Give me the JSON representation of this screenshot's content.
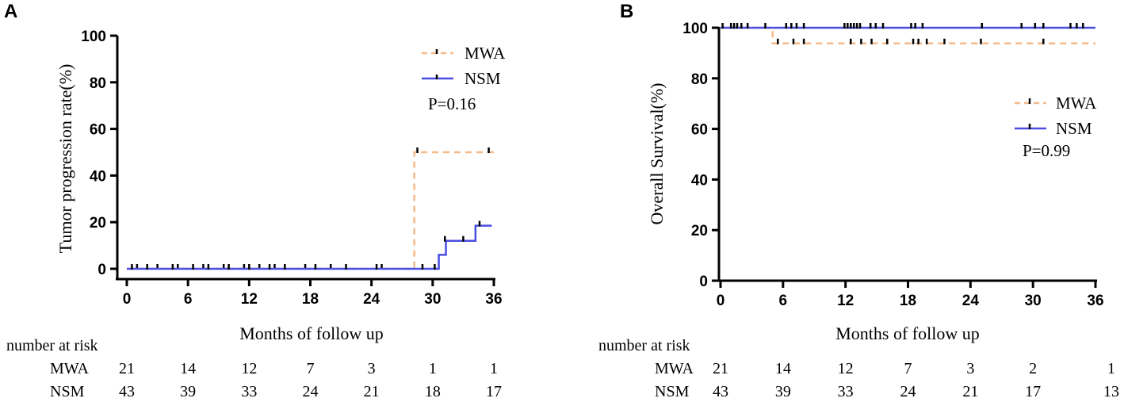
{
  "colors": {
    "mwa": "#f5b98a",
    "nsm": "#4a4ee0",
    "axis": "#000000"
  },
  "chart_data": [
    {
      "panel": "A",
      "type": "line",
      "subtype": "kaplan-meier",
      "xlabel": "Months of follow up",
      "ylabel": "Tumor progression rate(%)",
      "xlim": [
        0,
        36
      ],
      "ylim": [
        0,
        100
      ],
      "xticks": [
        0,
        6,
        12,
        18,
        24,
        30,
        36
      ],
      "yticks": [
        0,
        20,
        40,
        60,
        80,
        100
      ],
      "p_value": "P=0.16",
      "series": [
        {
          "name": "MWA",
          "style": "dashed",
          "steps": [
            [
              0,
              0
            ],
            [
              28.2,
              50
            ],
            [
              36,
              50
            ]
          ],
          "censor": [
            [
              1,
              0
            ],
            [
              3,
              0
            ],
            [
              5,
              0
            ],
            [
              7.5,
              0
            ],
            [
              9.5,
              0
            ],
            [
              11.5,
              0
            ],
            [
              13,
              0
            ],
            [
              14.5,
              0
            ],
            [
              17.5,
              0
            ],
            [
              20,
              0
            ],
            [
              25,
              0
            ],
            [
              28.5,
              50
            ],
            [
              35.5,
              50
            ]
          ]
        },
        {
          "name": "NSM",
          "style": "solid",
          "steps": [
            [
              0,
              0
            ],
            [
              30.6,
              6
            ],
            [
              31.3,
              12
            ],
            [
              34.2,
              18.5
            ],
            [
              35.8,
              18.5
            ]
          ],
          "censor": [
            [
              0.5,
              0
            ],
            [
              2,
              0
            ],
            [
              4.5,
              0
            ],
            [
              6.5,
              0
            ],
            [
              8,
              0
            ],
            [
              10,
              0
            ],
            [
              12,
              0
            ],
            [
              14,
              0
            ],
            [
              15.5,
              0
            ],
            [
              18.5,
              0
            ],
            [
              21.5,
              0
            ],
            [
              24.5,
              0
            ],
            [
              29,
              0
            ],
            [
              30.2,
              0
            ],
            [
              31.2,
              12
            ],
            [
              33,
              12
            ],
            [
              34.6,
              18.5
            ]
          ]
        }
      ],
      "risk_table": {
        "header": "number at risk",
        "times": [
          0,
          6,
          12,
          18,
          24,
          30,
          36
        ],
        "rows": [
          {
            "label": "MWA",
            "values": [
              "21",
              "14",
              "12",
              "7",
              "3",
              "1",
              "1"
            ]
          },
          {
            "label": "NSM",
            "values": [
              "43",
              "39",
              "33",
              "24",
              "21",
              "18",
              "17"
            ]
          }
        ]
      }
    },
    {
      "panel": "B",
      "type": "line",
      "subtype": "kaplan-meier",
      "xlabel": "Months of follow up",
      "ylabel": "Overall Survival(%)",
      "xlim": [
        0,
        36
      ],
      "ylim": [
        0,
        100
      ],
      "xticks": [
        0,
        6,
        12,
        18,
        24,
        30,
        36
      ],
      "yticks": [
        0,
        20,
        40,
        60,
        80,
        100
      ],
      "p_value": "P=0.99",
      "series": [
        {
          "name": "MWA",
          "style": "dashed",
          "steps": [
            [
              0,
              100
            ],
            [
              5,
              93.8
            ],
            [
              36,
              93.8
            ]
          ],
          "censor": [
            [
              5.5,
              93.8
            ],
            [
              7,
              93.8
            ],
            [
              8,
              93.8
            ],
            [
              12.5,
              93.8
            ],
            [
              13.5,
              93.8
            ],
            [
              14.5,
              93.8
            ],
            [
              16,
              93.8
            ],
            [
              18.5,
              93.8
            ],
            [
              19,
              93.8
            ],
            [
              19.8,
              93.8
            ],
            [
              21.5,
              93.8
            ],
            [
              25,
              93.8
            ],
            [
              31,
              93.8
            ]
          ]
        },
        {
          "name": "NSM",
          "style": "solid",
          "steps": [
            [
              0,
              100
            ],
            [
              36,
              100
            ]
          ],
          "censor": [
            [
              0.2,
              100
            ],
            [
              1,
              100
            ],
            [
              1.3,
              100
            ],
            [
              1.6,
              100
            ],
            [
              2,
              100
            ],
            [
              2.6,
              100
            ],
            [
              4.3,
              100
            ],
            [
              6.3,
              100
            ],
            [
              6.8,
              100
            ],
            [
              7.3,
              100
            ],
            [
              8,
              100
            ],
            [
              11.9,
              100
            ],
            [
              12.2,
              100
            ],
            [
              12.5,
              100
            ],
            [
              12.8,
              100
            ],
            [
              13.1,
              100
            ],
            [
              13.4,
              100
            ],
            [
              14.4,
              100
            ],
            [
              14.9,
              100
            ],
            [
              15.6,
              100
            ],
            [
              18.3,
              100
            ],
            [
              18.7,
              100
            ],
            [
              19.4,
              100
            ],
            [
              25.1,
              100
            ],
            [
              28.9,
              100
            ],
            [
              30.2,
              100
            ],
            [
              31,
              100
            ],
            [
              33.6,
              100
            ],
            [
              34.2,
              100
            ],
            [
              34.8,
              100
            ]
          ]
        }
      ],
      "risk_table": {
        "header": "number at risk",
        "times": [
          0,
          6,
          12,
          18,
          24,
          30,
          36
        ],
        "rows": [
          {
            "label": "MWA",
            "values": [
              "21",
              "14",
              "12",
              "7",
              "3",
              "2",
              "1"
            ]
          },
          {
            "label": "NSM",
            "values": [
              "43",
              "39",
              "33",
              "24",
              "21",
              "17",
              "13"
            ]
          }
        ]
      }
    }
  ]
}
